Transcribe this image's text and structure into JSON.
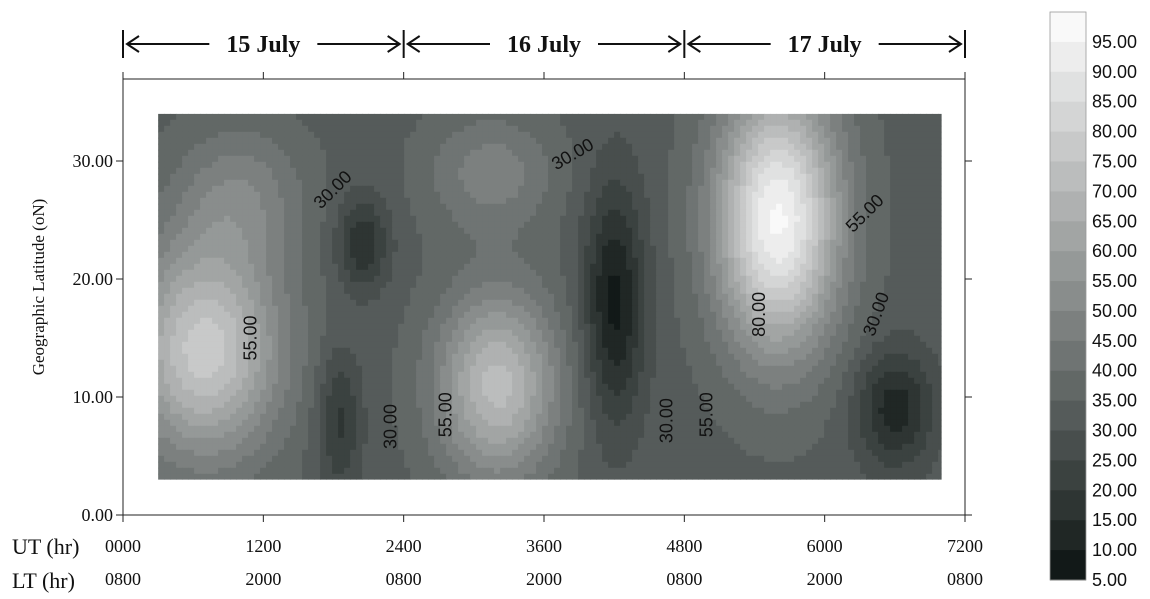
{
  "chart_data": {
    "type": "heatmap",
    "xlabel": "",
    "ylabel": "Geographic Latitude (oN)",
    "xlim": [
      0,
      7200
    ],
    "ylim": [
      0,
      30
    ],
    "y_ticks": [
      "0.00",
      "10.00",
      "20.00",
      "30.00"
    ],
    "ut_row_label": "UT (hr)",
    "ut_ticks": [
      "0000",
      "1200",
      "2400",
      "3600",
      "4800",
      "6000",
      "7200"
    ],
    "lt_row_label": "LT (hr)",
    "lt_ticks": [
      "0800",
      "2000",
      "0800",
      "2000",
      "0800",
      "2000",
      "0800"
    ],
    "dates": [
      {
        "label": "15 July",
        "start": 0,
        "end": 2400
      },
      {
        "label": "16 July",
        "start": 2400,
        "end": 4800
      },
      {
        "label": "17 July",
        "start": 4800,
        "end": 7200
      }
    ],
    "data_extent": {
      "x": [
        300,
        7000
      ],
      "y": [
        3,
        34
      ]
    },
    "colorbar": {
      "min": 5,
      "max": 100,
      "step": 5,
      "labels": [
        "95.00",
        "90.00",
        "85.00",
        "80.00",
        "75.00",
        "70.00",
        "65.00",
        "60.00",
        "55.00",
        "50.00",
        "45.00",
        "40.00",
        "35.00",
        "30.00",
        "25.00",
        "20.00",
        "15.00",
        "10.00",
        "5.00"
      ],
      "dark_color": "#0a1210",
      "light_color": "#ffffff"
    },
    "features": [
      {
        "x": 700,
        "y": 14,
        "value": 78,
        "spread_x": 650,
        "spread_y": 9
      },
      {
        "x": 1000,
        "y": 27,
        "value": 48,
        "spread_x": 550,
        "spread_y": 6
      },
      {
        "x": 2050,
        "y": 23,
        "value": 15,
        "spread_x": 220,
        "spread_y": 4
      },
      {
        "x": 1850,
        "y": 8,
        "value": 18,
        "spread_x": 190,
        "spread_y": 6
      },
      {
        "x": 3200,
        "y": 11,
        "value": 72,
        "spread_x": 520,
        "spread_y": 8
      },
      {
        "x": 3150,
        "y": 29,
        "value": 48,
        "spread_x": 550,
        "spread_y": 5
      },
      {
        "x": 4200,
        "y": 18,
        "value": 8,
        "spread_x": 260,
        "spread_y": 10
      },
      {
        "x": 5600,
        "y": 25,
        "value": 96,
        "spread_x": 520,
        "spread_y": 11
      },
      {
        "x": 6600,
        "y": 9,
        "value": 12,
        "spread_x": 330,
        "spread_y": 5
      }
    ],
    "background_value": 33,
    "contour_labels": [
      {
        "text": "30.00",
        "x": 1800,
        "y": 27.5,
        "angle": -45
      },
      {
        "text": "55.00",
        "x": 1100,
        "y": 15,
        "angle": -90
      },
      {
        "text": "30.00",
        "x": 2300,
        "y": 7.5,
        "angle": -90
      },
      {
        "text": "55.00",
        "x": 2770,
        "y": 8.5,
        "angle": -90
      },
      {
        "text": "30.00",
        "x": 3850,
        "y": 30.5,
        "angle": -30
      },
      {
        "text": "30.00",
        "x": 4660,
        "y": 8,
        "angle": -90
      },
      {
        "text": "55.00",
        "x": 5000,
        "y": 8.5,
        "angle": -90
      },
      {
        "text": "80.00",
        "x": 5450,
        "y": 17,
        "angle": -90
      },
      {
        "text": "55.00",
        "x": 6350,
        "y": 25.5,
        "angle": -45
      },
      {
        "text": "30.00",
        "x": 6450,
        "y": 17,
        "angle": -70
      }
    ]
  }
}
